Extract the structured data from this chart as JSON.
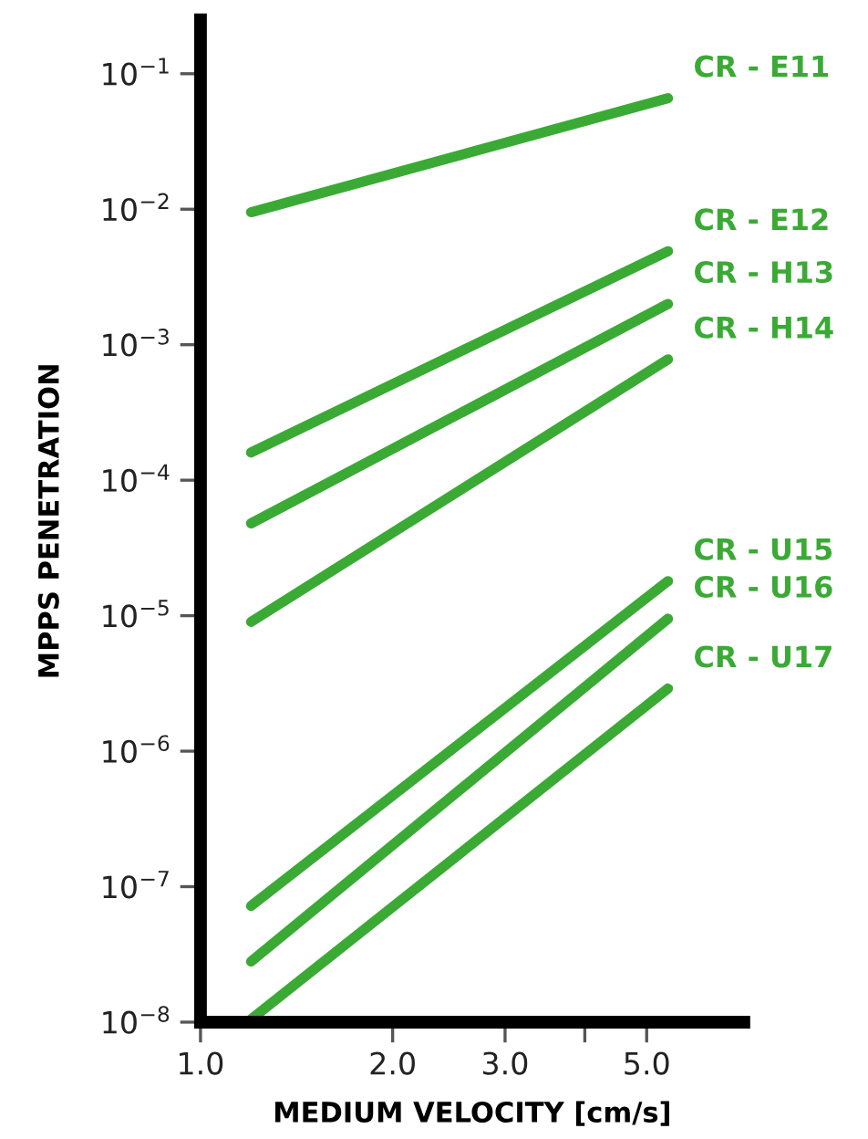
{
  "chart_data": {
    "type": "line",
    "xlabel": "MEDIUM VELOCITY [cm/s]",
    "ylabel": "MPPS PENETRATION",
    "log": "xy",
    "xlim": [
      1.0,
      7.1
    ],
    "ylim": [
      1e-08,
      0.25
    ],
    "xticks": [
      {
        "value": 1.0,
        "label": "1.0"
      },
      {
        "value": 2.0,
        "label": "2.0"
      },
      {
        "value": 3.0,
        "label": "3.0"
      },
      {
        "value": 4.0,
        "label": null
      },
      {
        "value": 5.0,
        "label": "5.0"
      }
    ],
    "yticks": [
      {
        "value": 1e-08,
        "label": "10$^{−8}$"
      },
      {
        "value": 1e-07,
        "label": "10$^{−7}$"
      },
      {
        "value": 1e-06,
        "label": "10$^{−6}$"
      },
      {
        "value": 1e-05,
        "label": "10$^{−5}$"
      },
      {
        "value": 0.0001,
        "label": "10$^{−4}$"
      },
      {
        "value": 0.001,
        "label": "10$^{−3}$"
      },
      {
        "value": 0.01,
        "label": "10$^{−2}$"
      },
      {
        "value": 0.1,
        "label": "10$^{−1}$"
      }
    ],
    "grid": false,
    "legend": false,
    "marker": "none",
    "line_style": "solid",
    "x": [
      1.2,
      5.4
    ],
    "series": [
      {
        "name": "CR - E11",
        "color": "#3aaa35",
        "values": [
          0.0095,
          0.066
        ]
      },
      {
        "name": "CR - E12",
        "color": "#3aaa35",
        "values": [
          0.00016,
          0.0049
        ]
      },
      {
        "name": "CR - H13",
        "color": "#3aaa35",
        "values": [
          4.8e-05,
          0.002
        ]
      },
      {
        "name": "CR - H14",
        "color": "#3aaa35",
        "values": [
          9e-06,
          0.00078
        ]
      },
      {
        "name": "CR - U15",
        "color": "#3aaa35",
        "values": [
          7.2e-08,
          1.8e-05
        ]
      },
      {
        "name": "CR - U16",
        "color": "#3aaa35",
        "values": [
          2.8e-08,
          9.5e-06
        ]
      },
      {
        "name": "CR - U17",
        "color": "#3aaa35",
        "values": [
          1.05e-08,
          2.9e-06
        ]
      }
    ]
  }
}
